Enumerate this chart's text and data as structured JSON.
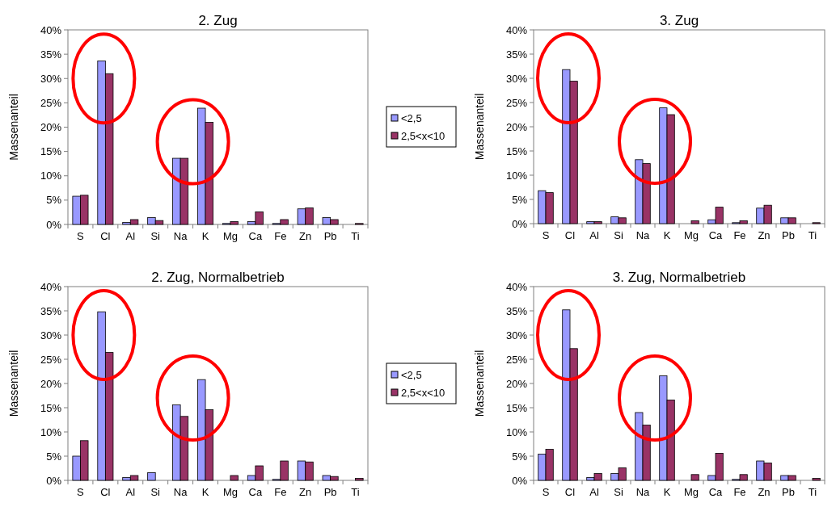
{
  "chart_data": [
    {
      "type": "bar",
      "title": "2. Zug",
      "ylabel": "Massenanteil",
      "categories": [
        "S",
        "Cl",
        "Al",
        "Si",
        "Na",
        "K",
        "Mg",
        "Ca",
        "Fe",
        "Zn",
        "Pb",
        "Ti"
      ],
      "ylim": [
        0,
        40
      ],
      "yticks": [
        {
          "value": 0,
          "label": "0%"
        },
        {
          "value": 5,
          "label": "5%"
        },
        {
          "value": 10,
          "label": "10%"
        },
        {
          "value": 15,
          "label": "15%"
        },
        {
          "value": 20,
          "label": "20%"
        },
        {
          "value": 25,
          "label": "25%"
        },
        {
          "value": 30,
          "label": "30%"
        },
        {
          "value": 35,
          "label": "35%"
        },
        {
          "value": 40,
          "label": "40%"
        }
      ],
      "legend": "right",
      "series": [
        {
          "name": "<2,5",
          "color": "#9999ff",
          "values": [
            5.8,
            33.6,
            0.4,
            1.4,
            13.6,
            23.9,
            0.2,
            0.6,
            0.2,
            3.2,
            1.4,
            0
          ]
        },
        {
          "name": "2,5<x<10",
          "color": "#993366",
          "values": [
            6.0,
            31.0,
            1.0,
            0.8,
            13.6,
            21.0,
            0.6,
            2.6,
            1.0,
            3.4,
            1.0,
            0.2
          ]
        }
      ]
    },
    {
      "type": "bar",
      "title": "3. Zug",
      "ylabel": "Massenanteil",
      "categories": [
        "S",
        "Cl",
        "Al",
        "Si",
        "Na",
        "K",
        "Mg",
        "Ca",
        "Fe",
        "Zn",
        "Pb",
        "Ti"
      ],
      "ylim": [
        0,
        40
      ],
      "yticks": [
        {
          "value": 0,
          "label": "0%"
        },
        {
          "value": 5,
          "label": "5%"
        },
        {
          "value": 10,
          "label": "10%"
        },
        {
          "value": 15,
          "label": "15%"
        },
        {
          "value": 20,
          "label": "20%"
        },
        {
          "value": 25,
          "label": "25%"
        },
        {
          "value": 30,
          "label": "30%"
        },
        {
          "value": 35,
          "label": "35%"
        },
        {
          "value": 40,
          "label": "40%"
        }
      ],
      "series": [
        {
          "color": "#9999ff",
          "values": [
            6.8,
            31.8,
            0.4,
            1.4,
            13.2,
            23.9,
            0,
            0.8,
            0.2,
            3.2,
            1.2,
            0
          ]
        },
        {
          "color": "#993366",
          "values": [
            6.4,
            29.4,
            0.4,
            1.2,
            12.4,
            22.5,
            0.6,
            3.4,
            0.6,
            3.8,
            1.2,
            0.2
          ]
        }
      ]
    },
    {
      "type": "bar",
      "title": "2. Zug, Normalbetrieb",
      "ylabel": "Massenanteil",
      "categories": [
        "S",
        "Cl",
        "Al",
        "Si",
        "Na",
        "K",
        "Mg",
        "Ca",
        "Fe",
        "Zn",
        "Pb",
        "Ti"
      ],
      "ylim": [
        0,
        40
      ],
      "yticks": [
        {
          "value": 0,
          "label": "0%"
        },
        {
          "value": 5,
          "label": "5%"
        },
        {
          "value": 10,
          "label": "10%"
        },
        {
          "value": 15,
          "label": "15%"
        },
        {
          "value": 20,
          "label": "20%"
        },
        {
          "value": 25,
          "label": "25%"
        },
        {
          "value": 30,
          "label": "30%"
        },
        {
          "value": 35,
          "label": "35%"
        },
        {
          "value": 40,
          "label": "40%"
        }
      ],
      "legend": "right",
      "series": [
        {
          "name": "<2,5",
          "color": "#9999ff",
          "values": [
            5.0,
            34.8,
            0.6,
            1.6,
            15.6,
            20.8,
            0,
            1.0,
            0.2,
            4.0,
            1.0,
            0
          ]
        },
        {
          "name": "2,5<x<10",
          "color": "#993366",
          "values": [
            8.2,
            26.4,
            1.0,
            0,
            13.2,
            14.6,
            1.0,
            3.0,
            4.0,
            3.8,
            0.8,
            0.4
          ]
        }
      ]
    },
    {
      "type": "bar",
      "title": "3. Zug, Normalbetrieb",
      "ylabel": "Massenanteil",
      "categories": [
        "S",
        "Cl",
        "Al",
        "Si",
        "Na",
        "K",
        "Mg",
        "Ca",
        "Fe",
        "Zn",
        "Pb",
        "Ti"
      ],
      "ylim": [
        0,
        40
      ],
      "yticks": [
        {
          "value": 0,
          "label": "0%"
        },
        {
          "value": 5,
          "label": "5%"
        },
        {
          "value": 10,
          "label": "10%"
        },
        {
          "value": 15,
          "label": "15%"
        },
        {
          "value": 20,
          "label": "20%"
        },
        {
          "value": 25,
          "label": "25%"
        },
        {
          "value": 30,
          "label": "30%"
        },
        {
          "value": 35,
          "label": "35%"
        },
        {
          "value": 40,
          "label": "40%"
        }
      ],
      "series": [
        {
          "color": "#9999ff",
          "values": [
            5.4,
            35.2,
            0.6,
            1.4,
            14.0,
            21.6,
            0,
            1.0,
            0.2,
            4.0,
            1.0,
            0
          ]
        },
        {
          "color": "#993366",
          "values": [
            6.4,
            27.2,
            1.4,
            2.6,
            11.4,
            16.6,
            1.2,
            5.6,
            1.2,
            3.6,
            1.0,
            0.4
          ]
        }
      ]
    }
  ]
}
